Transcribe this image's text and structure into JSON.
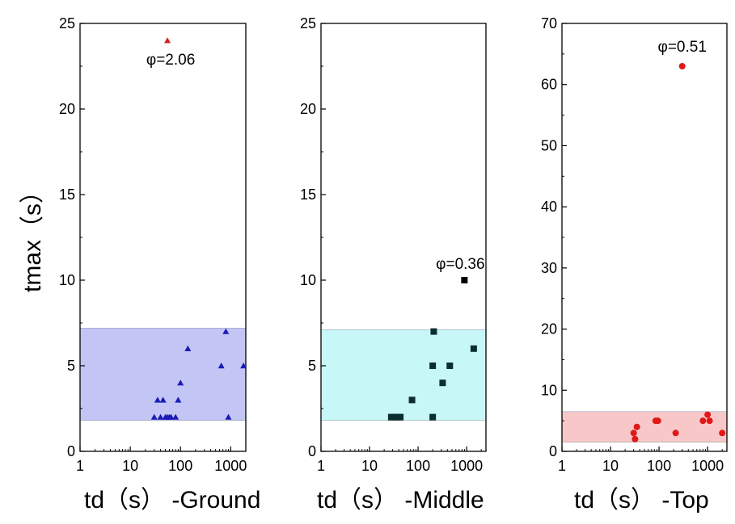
{
  "figure": {
    "ylabel": "tmax（s）"
  },
  "chart_data": [
    {
      "type": "scatter",
      "panel": "ground",
      "xlabel": "td（s）",
      "panel_label": "-Ground",
      "xscale": "log",
      "xlim": [
        1,
        2000
      ],
      "ylim": [
        0,
        25
      ],
      "yticks": [
        0,
        5,
        10,
        15,
        20,
        25
      ],
      "xticks": [
        1,
        10,
        100,
        1000
      ],
      "band": {
        "ymin": 1.8,
        "ymax": 7.2,
        "color": "#c3c5f4"
      },
      "marker": "triangle",
      "color": "#1a1ab8",
      "points": [
        [
          30,
          2
        ],
        [
          35,
          3
        ],
        [
          40,
          2
        ],
        [
          45,
          3
        ],
        [
          50,
          2
        ],
        [
          55,
          2
        ],
        [
          60,
          2
        ],
        [
          65,
          2
        ],
        [
          80,
          2
        ],
        [
          90,
          3
        ],
        [
          100,
          4
        ],
        [
          140,
          6
        ],
        [
          650,
          5
        ],
        [
          800,
          7
        ],
        [
          900,
          2
        ],
        [
          1800,
          5
        ]
      ],
      "outlier": {
        "x": 55,
        "y": 24,
        "color": "#d42020",
        "label": "φ=2.06"
      }
    },
    {
      "type": "scatter",
      "panel": "middle",
      "xlabel": "td（s）",
      "panel_label": "-Middle",
      "xscale": "log",
      "xlim": [
        1,
        2500
      ],
      "ylim": [
        0,
        25
      ],
      "yticks": [
        0,
        5,
        10,
        15,
        20,
        25
      ],
      "xticks": [
        1,
        10,
        100,
        1000
      ],
      "band": {
        "ymin": 1.8,
        "ymax": 7.1,
        "color": "#c8f7f7"
      },
      "marker": "square",
      "color": "#0a2e2e",
      "points": [
        [
          28,
          2
        ],
        [
          31,
          2
        ],
        [
          34,
          2
        ],
        [
          37,
          2
        ],
        [
          40,
          2
        ],
        [
          43,
          2
        ],
        [
          75,
          3
        ],
        [
          200,
          2
        ],
        [
          200,
          5
        ],
        [
          210,
          7
        ],
        [
          320,
          4
        ],
        [
          450,
          5
        ],
        [
          1400,
          6
        ]
      ],
      "outlier": {
        "x": 900,
        "y": 10,
        "color": "#000000",
        "label": "φ=0.36"
      }
    },
    {
      "type": "scatter",
      "panel": "top",
      "xlabel": "td（s）",
      "panel_label": "-Top",
      "xscale": "log",
      "xlim": [
        1,
        2500
      ],
      "ylim": [
        0,
        70
      ],
      "yticks": [
        0,
        10,
        20,
        30,
        40,
        50,
        60,
        70
      ],
      "xticks": [
        1,
        10,
        100,
        1000
      ],
      "band": {
        "ymin": 1.5,
        "ymax": 6.5,
        "color": "#f8c8c8"
      },
      "marker": "circle",
      "color": "#e01818",
      "points": [
        [
          30,
          3
        ],
        [
          32,
          2
        ],
        [
          35,
          4
        ],
        [
          85,
          5
        ],
        [
          95,
          5
        ],
        [
          220,
          3
        ],
        [
          800,
          5
        ],
        [
          1000,
          6
        ],
        [
          1100,
          5
        ],
        [
          2000,
          3
        ]
      ],
      "outlier": {
        "x": 300,
        "y": 63,
        "color": "#e01818",
        "label": "φ=0.51"
      }
    }
  ]
}
